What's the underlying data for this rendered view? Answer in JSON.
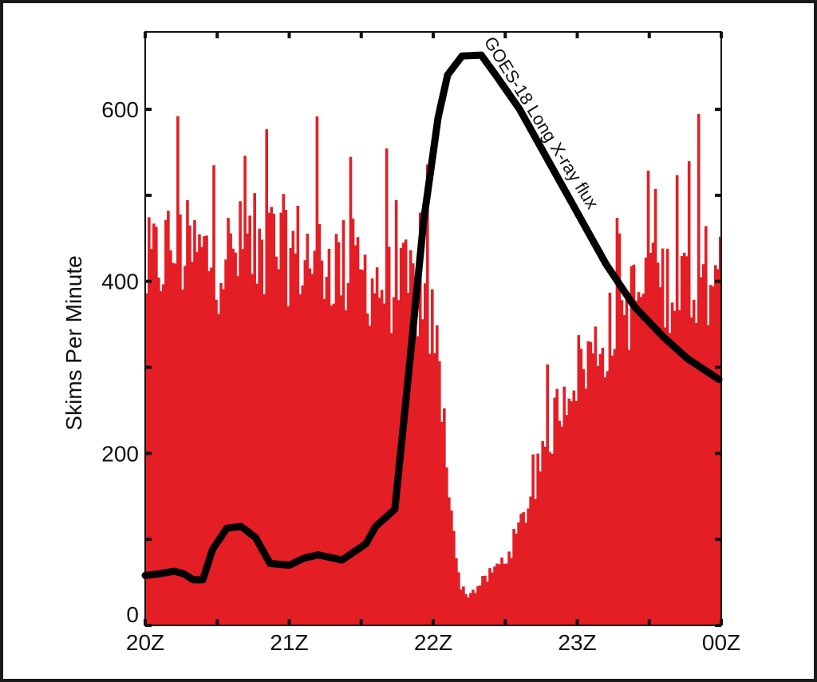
{
  "chart_data": {
    "type": "bar",
    "ylabel": "Skims Per Minute",
    "ylim": [
      0,
      690
    ],
    "yticks": [
      0,
      200,
      400,
      600
    ],
    "xlim": [
      0,
      240
    ],
    "xticks": [
      {
        "minute": 0,
        "label": "20Z"
      },
      {
        "minute": 60,
        "label": "21Z"
      },
      {
        "minute": 120,
        "label": "22Z"
      },
      {
        "minute": 180,
        "label": "23Z"
      },
      {
        "minute": 240,
        "label": "00Z"
      }
    ],
    "bar_color": "#e41e25",
    "line_color": "#000000",
    "annotation": "GOES-18 Long X-ray flux",
    "skims_envelope": [
      [
        0,
        410
      ],
      [
        10,
        440
      ],
      [
        20,
        430
      ],
      [
        30,
        425
      ],
      [
        40,
        435
      ],
      [
        50,
        440
      ],
      [
        60,
        435
      ],
      [
        70,
        430
      ],
      [
        80,
        420
      ],
      [
        90,
        410
      ],
      [
        100,
        395
      ],
      [
        110,
        390
      ],
      [
        115,
        380
      ],
      [
        120,
        340
      ],
      [
        122,
        290
      ],
      [
        125,
        200
      ],
      [
        128,
        110
      ],
      [
        130,
        55
      ],
      [
        133,
        35
      ],
      [
        136,
        40
      ],
      [
        140,
        50
      ],
      [
        145,
        65
      ],
      [
        150,
        80
      ],
      [
        155,
        110
      ],
      [
        160,
        150
      ],
      [
        165,
        190
      ],
      [
        170,
        240
      ],
      [
        175,
        280
      ],
      [
        180,
        300
      ],
      [
        190,
        330
      ],
      [
        200,
        370
      ],
      [
        210,
        395
      ],
      [
        220,
        400
      ],
      [
        230,
        410
      ],
      [
        240,
        410
      ]
    ],
    "xray_flux_line": [
      [
        0,
        58
      ],
      [
        6,
        60
      ],
      [
        12,
        63
      ],
      [
        16,
        60
      ],
      [
        20,
        53
      ],
      [
        24,
        53
      ],
      [
        28,
        88
      ],
      [
        34,
        113
      ],
      [
        40,
        115
      ],
      [
        46,
        102
      ],
      [
        52,
        72
      ],
      [
        60,
        70
      ],
      [
        66,
        78
      ],
      [
        72,
        82
      ],
      [
        82,
        76
      ],
      [
        92,
        95
      ],
      [
        96,
        115
      ],
      [
        104,
        135
      ],
      [
        110,
        300
      ],
      [
        116,
        470
      ],
      [
        122,
        590
      ],
      [
        126,
        640
      ],
      [
        132,
        662
      ],
      [
        140,
        663
      ],
      [
        146,
        640
      ],
      [
        156,
        600
      ],
      [
        170,
        530
      ],
      [
        180,
        480
      ],
      [
        192,
        420
      ],
      [
        204,
        370
      ],
      [
        216,
        335
      ],
      [
        226,
        310
      ],
      [
        239,
        286
      ]
    ]
  }
}
